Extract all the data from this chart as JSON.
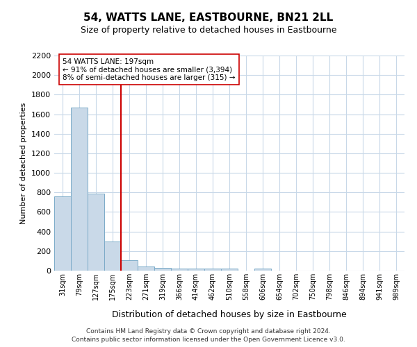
{
  "title": "54, WATTS LANE, EASTBOURNE, BN21 2LL",
  "subtitle": "Size of property relative to detached houses in Eastbourne",
  "xlabel": "Distribution of detached houses by size in Eastbourne",
  "ylabel": "Number of detached properties",
  "categories": [
    "31sqm",
    "79sqm",
    "127sqm",
    "175sqm",
    "223sqm",
    "271sqm",
    "319sqm",
    "366sqm",
    "414sqm",
    "462sqm",
    "510sqm",
    "558sqm",
    "606sqm",
    "654sqm",
    "702sqm",
    "750sqm",
    "798sqm",
    "846sqm",
    "894sqm",
    "941sqm",
    "989sqm"
  ],
  "values": [
    760,
    1670,
    790,
    300,
    110,
    40,
    30,
    22,
    20,
    20,
    20,
    0,
    20,
    0,
    0,
    0,
    0,
    0,
    0,
    0,
    0
  ],
  "bar_color": "#c9d9e8",
  "bar_edge_color": "#7aaac8",
  "annotation_line1": "54 WATTS LANE: 197sqm",
  "annotation_line2": "← 91% of detached houses are smaller (3,394)",
  "annotation_line3": "8% of semi-detached houses are larger (315) →",
  "vline_x": 3.5,
  "vline_color": "#cc0000",
  "annotation_box_edge": "#cc0000",
  "ylim": [
    0,
    2200
  ],
  "yticks": [
    0,
    200,
    400,
    600,
    800,
    1000,
    1200,
    1400,
    1600,
    1800,
    2000,
    2200
  ],
  "footer1": "Contains HM Land Registry data © Crown copyright and database right 2024.",
  "footer2": "Contains public sector information licensed under the Open Government Licence v3.0.",
  "background_color": "#ffffff",
  "grid_color": "#c8d8e8",
  "title_fontsize": 11,
  "subtitle_fontsize": 9
}
